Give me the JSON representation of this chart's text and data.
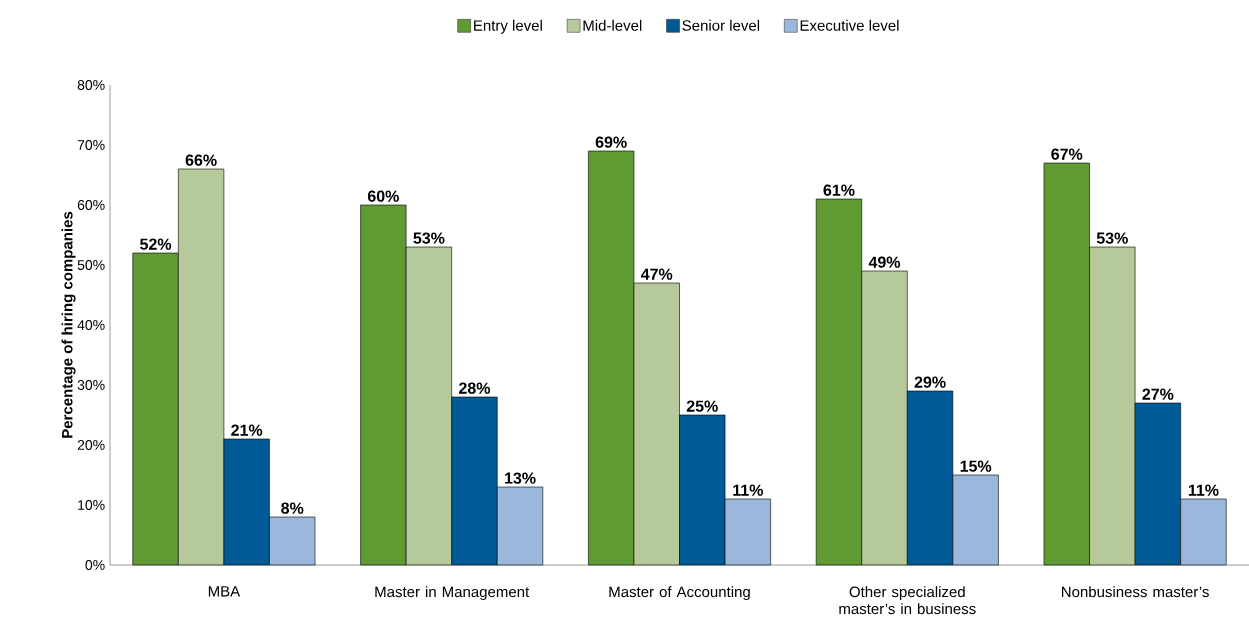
{
  "chart_data": {
    "type": "bar",
    "ylabel": "Percentage of hiring companies",
    "categories": [
      "MBA",
      "Master in Management",
      "Master of Accounting",
      "Other specialized master’s in business",
      "Nonbusiness master’s"
    ],
    "series": [
      {
        "name": "Entry level",
        "color": "#5f9b32",
        "values": [
          52,
          60,
          69,
          61,
          67
        ],
        "value_labels": [
          "52%",
          "60%",
          "69%",
          "61%",
          "67%"
        ]
      },
      {
        "name": "Mid-level",
        "color": "#b5c99b",
        "values": [
          66,
          53,
          47,
          49,
          53
        ],
        "value_labels": [
          "66%",
          "53%",
          "47%",
          "49%",
          "53%"
        ]
      },
      {
        "name": "Senior level",
        "color": "#005a96",
        "values": [
          21,
          28,
          25,
          29,
          27
        ],
        "value_labels": [
          "21%",
          "28%",
          "25%",
          "29%",
          "27%"
        ]
      },
      {
        "name": "Executive level",
        "color": "#9bb8dc",
        "values": [
          8,
          13,
          11,
          15,
          11
        ],
        "value_labels": [
          "8%",
          "13%",
          "11%",
          "15%",
          "11%"
        ]
      }
    ],
    "ylim": [
      0,
      80
    ],
    "yticks": [
      {
        "value": 0,
        "label": "0%"
      },
      {
        "value": 10,
        "label": "10%"
      },
      {
        "value": 20,
        "label": "20%"
      },
      {
        "value": 30,
        "label": "30%"
      },
      {
        "value": 40,
        "label": "40%"
      },
      {
        "value": 50,
        "label": "50%"
      },
      {
        "value": 60,
        "label": "60%"
      },
      {
        "value": 70,
        "label": "70%"
      },
      {
        "value": 80,
        "label": "80%"
      }
    ],
    "legend": "top",
    "grid": false
  }
}
